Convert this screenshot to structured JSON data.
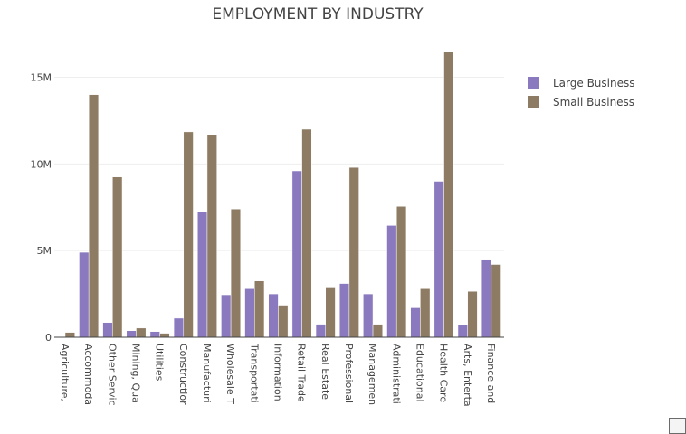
{
  "chart_data": {
    "type": "bar",
    "title": "EMPLOYMENT BY INDUSTRY",
    "xlabel": "",
    "ylabel": "",
    "ylim": [
      0,
      18000000
    ],
    "yticks": [
      0,
      5000000,
      10000000,
      15000000
    ],
    "ytick_labels": [
      "0",
      "5M",
      "10M",
      "15M"
    ],
    "grid": true,
    "legend": "top-right",
    "categories": [
      "Agriculture,",
      "Accommoda",
      "Other Servic",
      "Mining, Qua",
      "Utilities",
      "Constructior",
      "Manufacturi",
      "Wholesale T",
      "Transportati",
      "Information",
      "Retail Trade",
      "Real Estate",
      "Professional",
      "Managemen",
      "Administrati",
      "Educational",
      "Health Care",
      "Arts, Enterta",
      "Finance and"
    ],
    "series": [
      {
        "name": "Large Business",
        "color": "#8b79c0",
        "values": [
          0,
          4900000,
          850000,
          380000,
          330000,
          1100000,
          7250000,
          2450000,
          2800000,
          2500000,
          9600000,
          750000,
          3100000,
          2500000,
          6450000,
          1700000,
          9000000,
          700000,
          4450000
        ]
      },
      {
        "name": "Small Business",
        "color": "#8d7b63",
        "values": [
          280000,
          14000000,
          9250000,
          530000,
          230000,
          11850000,
          11700000,
          7400000,
          3250000,
          1850000,
          12000000,
          2900000,
          9800000,
          750000,
          7550000,
          2800000,
          16450000,
          2650000,
          4200000
        ]
      }
    ]
  }
}
